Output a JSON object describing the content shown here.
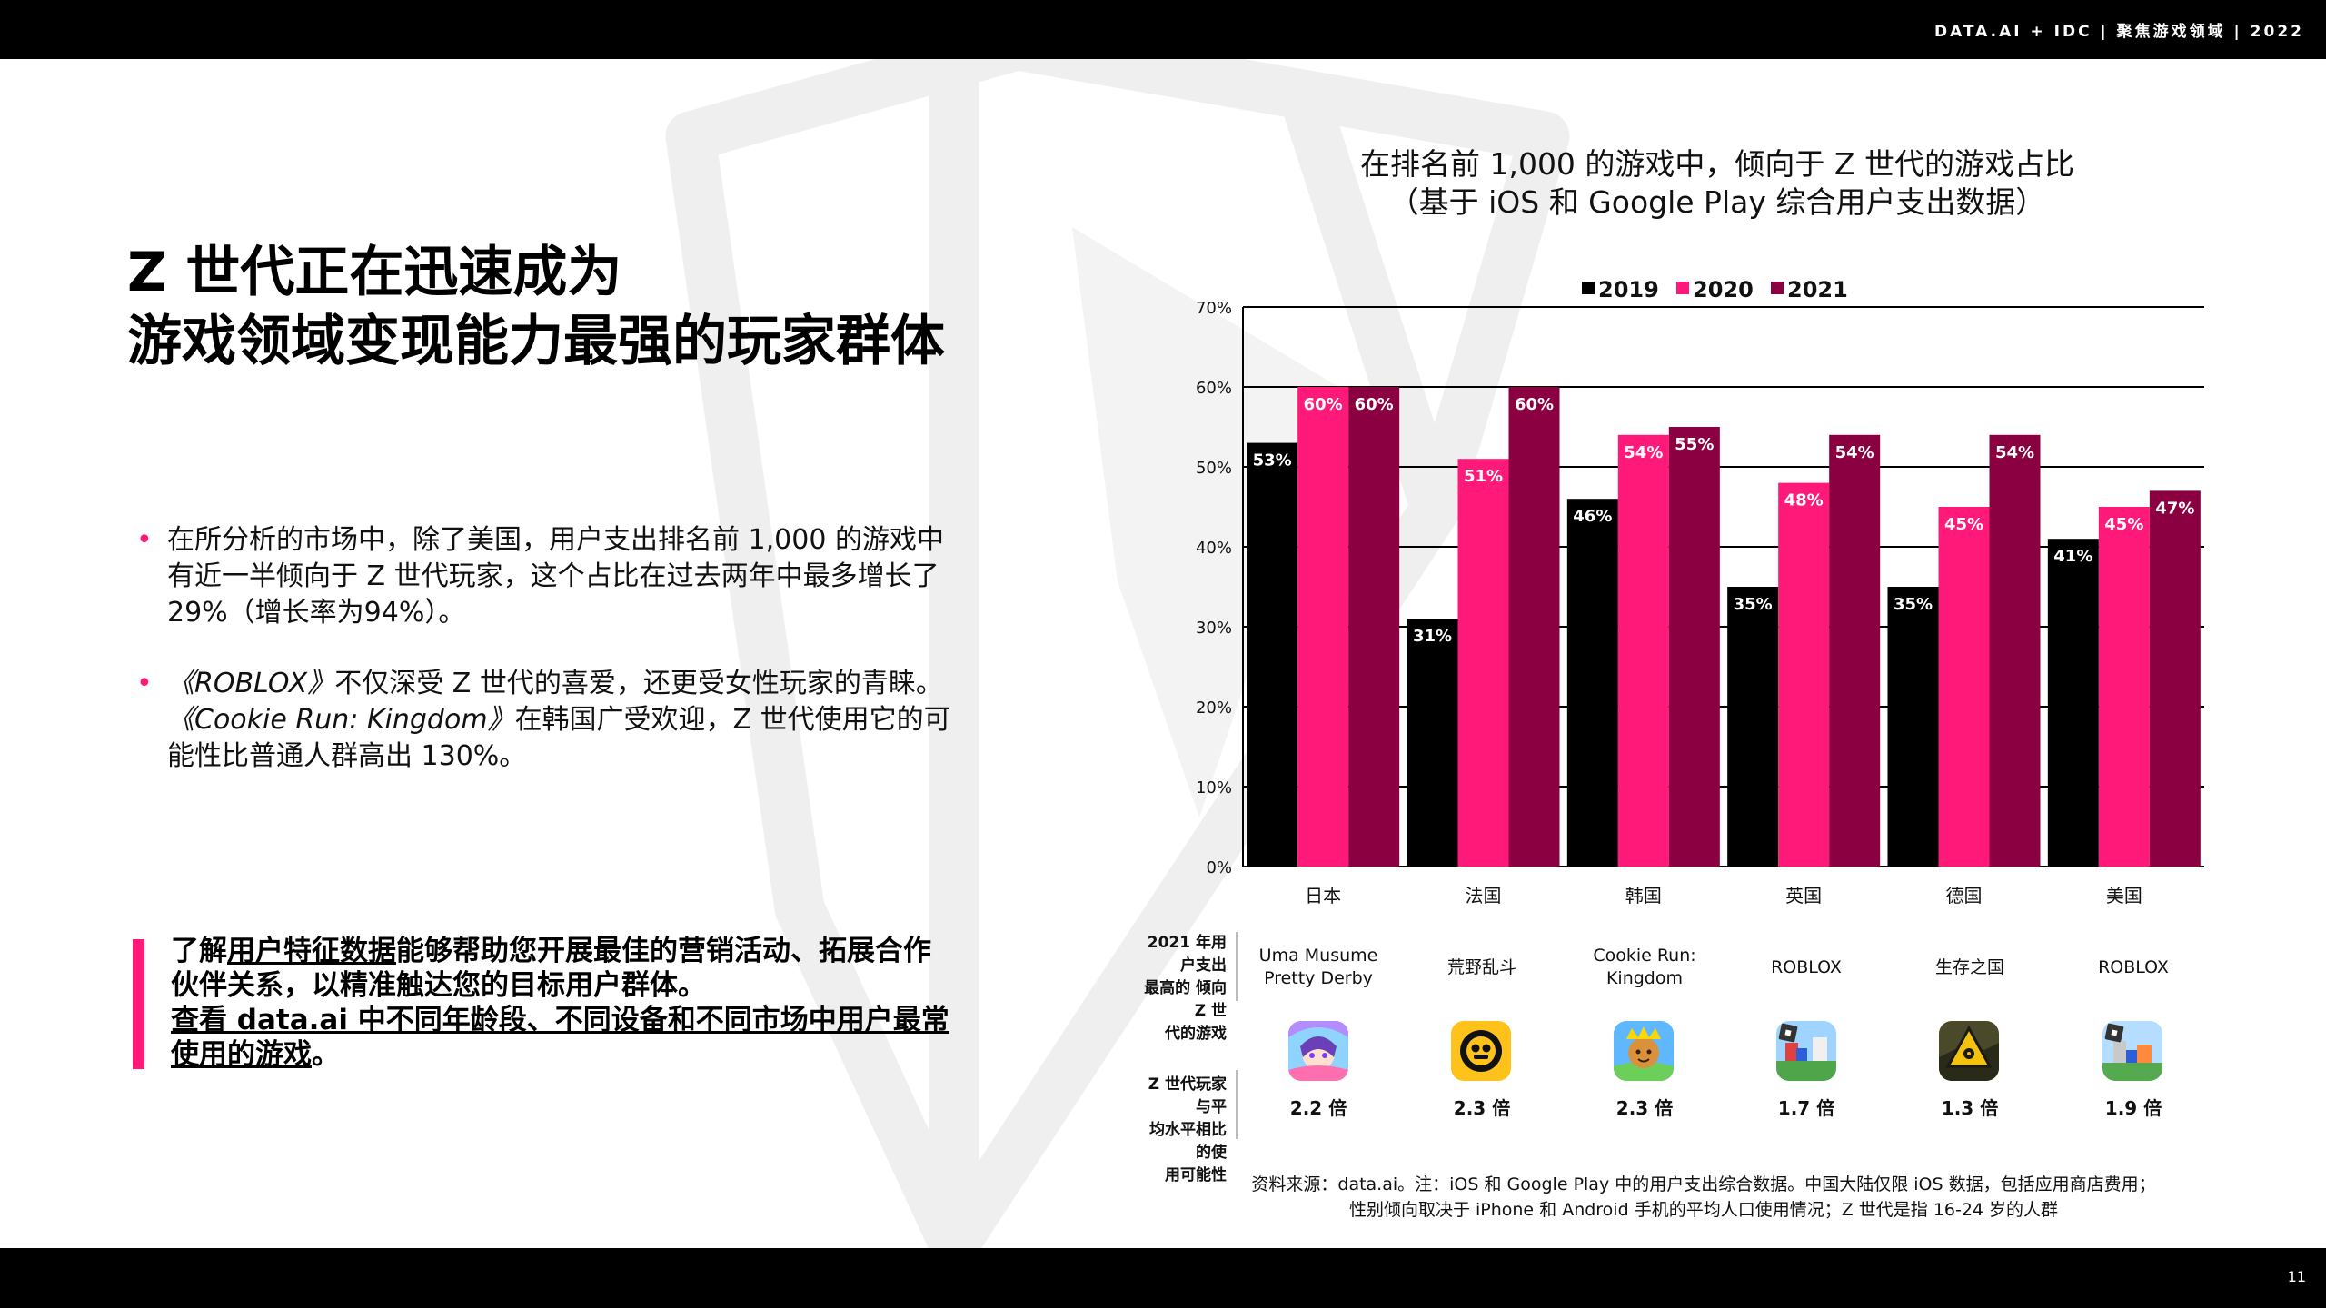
{
  "header": {
    "text": "DATA.AI + IDC  |  聚焦游戏领域  | 2022"
  },
  "footer": {
    "page_number": "11"
  },
  "headline": {
    "line1": "Z 世代正在迅速成为",
    "line2": "游戏领域变现能力最强的玩家群体"
  },
  "bullets": {
    "b1_l1": "在所分析的市场中，除了美国，用户支出排名前 1,000 的游戏中",
    "b1_l2": "有近一半倾向于 Z 世代玩家，这个占比在过去两年中最多增长了",
    "b1_l3": "29%（增长率为94%）。",
    "b2_roblox": "《ROBLOX》",
    "b2_l1_rest": "不仅深受 Z 世代的喜爱，还更受女性玩家的青睐。",
    "b2_cookie": "《Cookie Run: Kingdom》",
    "b2_l2_rest": "在韩国广受欢迎，Z 世代使用它的可",
    "b2_l3": "能性比普通人群高出 130%。"
  },
  "cta": {
    "line1_pre": "了解",
    "line1_link": "用户特征数据",
    "line1_post": "能够帮助您开展最佳的营销活动、拓展合作",
    "line2": "伙伴关系，以精准触达您的目标用户群体。",
    "line3_link": "查看 data.ai 中不同年龄段、不同设备和不同市场中用户最常",
    "line4_link": "使用的游戏",
    "line4_post": "。"
  },
  "chart_title": {
    "line1": "在排名前 1,000 的游戏中，倾向于 Z 世代的游戏占比",
    "line2": "（基于 iOS 和 Google Play 综合用户支出数据）"
  },
  "chart_data": {
    "type": "bar",
    "title": "在排名前 1,000 的游戏中，倾向于 Z 世代的游戏占比",
    "subtitle": "（基于 iOS 和 Google Play 综合用户支出数据）",
    "categories": [
      "日本",
      "法国",
      "韩国",
      "英国",
      "德国",
      "美国"
    ],
    "series": [
      {
        "name": "2019",
        "color": "#000000",
        "values": [
          53,
          31,
          46,
          35,
          35,
          41
        ]
      },
      {
        "name": "2020",
        "color": "#ff1a7a",
        "values": [
          60,
          51,
          54,
          48,
          45,
          45
        ]
      },
      {
        "name": "2021",
        "color": "#8a0040",
        "values": [
          60,
          60,
          55,
          54,
          54,
          47
        ]
      }
    ],
    "ylim": [
      0,
      70
    ],
    "yticks": [
      "0%",
      "10%",
      "20%",
      "30%",
      "40%",
      "50%",
      "60%",
      "70%"
    ],
    "legend_position": "top",
    "value_suffix": "%",
    "grid": true
  },
  "table": {
    "row1_label": [
      "2021 年用户支出",
      "最高的 倾向Z 世",
      "代的游戏"
    ],
    "row2_label": [
      "Z 世代玩家与平",
      "均水平相比的使",
      "用可能性"
    ],
    "games": [
      {
        "name": [
          "Uma Musume",
          "Pretty Derby"
        ],
        "multiplier": "2.2 倍",
        "icon": "uma-musume-icon"
      },
      {
        "name": [
          "荒野乱斗"
        ],
        "multiplier": "2.3 倍",
        "icon": "brawl-stars-icon"
      },
      {
        "name": [
          "Cookie Run:",
          "Kingdom"
        ],
        "multiplier": "2.3 倍",
        "icon": "cookie-run-icon"
      },
      {
        "name": [
          "ROBLOX"
        ],
        "multiplier": "1.7 倍",
        "icon": "roblox-icon"
      },
      {
        "name": [
          "生存之国"
        ],
        "multiplier": "1.3 倍",
        "icon": "state-of-survival-icon"
      },
      {
        "name": [
          "ROBLOX"
        ],
        "multiplier": "1.9 倍",
        "icon": "roblox-icon"
      }
    ]
  },
  "source": {
    "line1": "资料来源：data.ai。注：iOS 和 Google Play 中的用户支出综合数据。中国大陆仅限 iOS 数据，包括应用商店费用；",
    "line2": "性别倾向取决于 iPhone 和 Android 手机的平均人口使用情况；Z 世代是指 16-24 岁的人群"
  }
}
